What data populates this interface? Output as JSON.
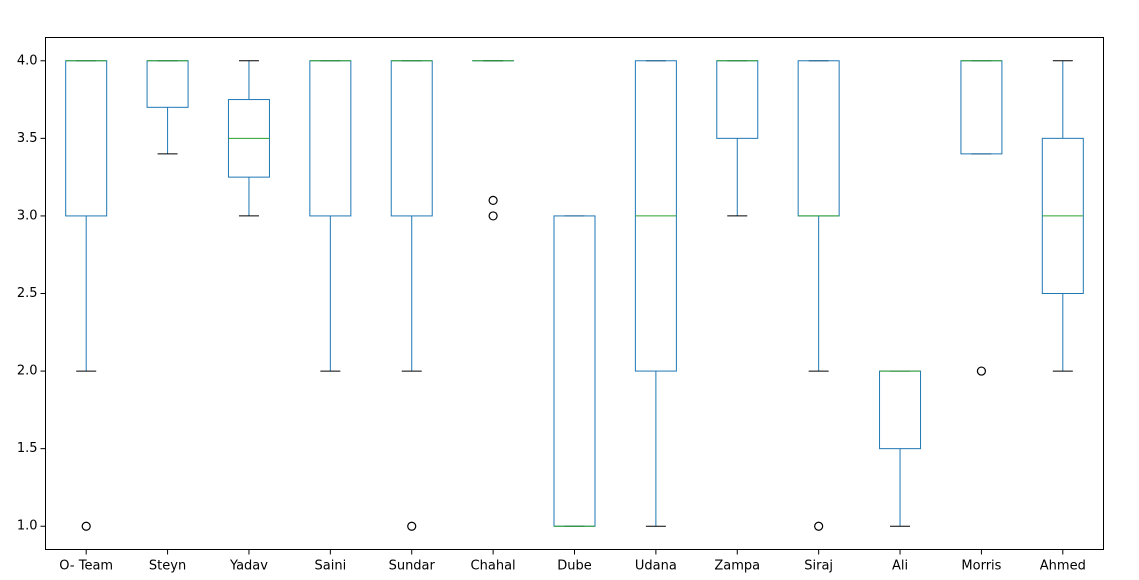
{
  "chart_data": {
    "type": "box",
    "title": "",
    "xlabel": "",
    "ylabel": "",
    "ylim": [
      0.85,
      4.15
    ],
    "yticks": [
      "1.0",
      "1.5",
      "2.0",
      "2.5",
      "3.0",
      "3.5",
      "4.0"
    ],
    "grid": false,
    "categories": [
      "O- Team",
      "Steyn",
      "Yadav",
      "Saini",
      "Sundar",
      "Chahal",
      "Dube",
      "Udana",
      "Zampa",
      "Siraj",
      "Ali",
      "Morris",
      "Ahmed"
    ],
    "boxes": [
      {
        "name": "O- Team",
        "whisker_low": 2.0,
        "q1": 3.0,
        "median": 4.0,
        "q3": 4.0,
        "whisker_high": 4.0,
        "outliers": [
          1.0
        ]
      },
      {
        "name": "Steyn",
        "whisker_low": 3.4,
        "q1": 3.7,
        "median": 4.0,
        "q3": 4.0,
        "whisker_high": 4.0,
        "outliers": []
      },
      {
        "name": "Yadav",
        "whisker_low": 3.0,
        "q1": 3.25,
        "median": 3.5,
        "q3": 3.75,
        "whisker_high": 4.0,
        "outliers": []
      },
      {
        "name": "Saini",
        "whisker_low": 2.0,
        "q1": 3.0,
        "median": 4.0,
        "q3": 4.0,
        "whisker_high": 4.0,
        "outliers": []
      },
      {
        "name": "Sundar",
        "whisker_low": 2.0,
        "q1": 3.0,
        "median": 4.0,
        "q3": 4.0,
        "whisker_high": 4.0,
        "outliers": [
          1.0
        ]
      },
      {
        "name": "Chahal",
        "whisker_low": 4.0,
        "q1": 4.0,
        "median": 4.0,
        "q3": 4.0,
        "whisker_high": 4.0,
        "outliers": [
          3.1,
          3.0
        ]
      },
      {
        "name": "Dube",
        "whisker_low": 1.0,
        "q1": 1.0,
        "median": 1.0,
        "q3": 3.0,
        "whisker_high": 3.0,
        "outliers": []
      },
      {
        "name": "Udana",
        "whisker_low": 1.0,
        "q1": 2.0,
        "median": 3.0,
        "q3": 4.0,
        "whisker_high": 4.0,
        "outliers": []
      },
      {
        "name": "Zampa",
        "whisker_low": 3.0,
        "q1": 3.5,
        "median": 4.0,
        "q3": 4.0,
        "whisker_high": 4.0,
        "outliers": []
      },
      {
        "name": "Siraj",
        "whisker_low": 2.0,
        "q1": 3.0,
        "median": 3.0,
        "q3": 4.0,
        "whisker_high": 4.0,
        "outliers": [
          1.0
        ]
      },
      {
        "name": "Ali",
        "whisker_low": 1.0,
        "q1": 1.5,
        "median": 2.0,
        "q3": 2.0,
        "whisker_high": 2.0,
        "outliers": []
      },
      {
        "name": "Morris",
        "whisker_low": 3.4,
        "q1": 3.4,
        "median": 4.0,
        "q3": 4.0,
        "whisker_high": 4.0,
        "outliers": [
          2.0
        ]
      },
      {
        "name": "Ahmed",
        "whisker_low": 2.0,
        "q1": 2.5,
        "median": 3.0,
        "q3": 3.5,
        "whisker_high": 4.0,
        "outliers": []
      }
    ],
    "colors": {
      "box": "#1f77b4",
      "median": "#2ca02c",
      "cap": "#000000",
      "outlier": "#000000",
      "axes": "#000000"
    }
  }
}
